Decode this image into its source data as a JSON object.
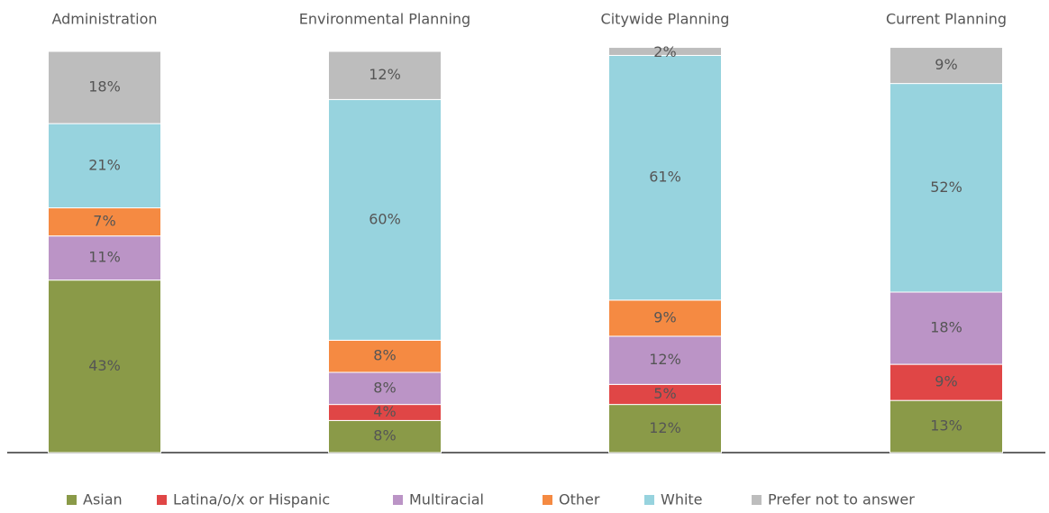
{
  "chart_data": {
    "type": "stacked_bar",
    "categories": [
      "Administration",
      "Environmental Planning",
      "Citywide Planning",
      "Current Planning"
    ],
    "series": [
      {
        "name": "Asian",
        "color": "#8a9a48",
        "values": [
          43,
          8,
          12,
          13
        ],
        "value_labels": [
          "43%",
          "8%",
          "12%",
          "13%"
        ]
      },
      {
        "name": "Latina/o/x or Hispanic",
        "color": "#e04646",
        "values": [
          null,
          4,
          5,
          9
        ],
        "value_labels": [
          null,
          "4%",
          "5%",
          "9%"
        ]
      },
      {
        "name": "Multiracial",
        "color": "#bb94c6",
        "values": [
          11,
          8,
          12,
          18
        ],
        "value_labels": [
          "11%",
          "8%",
          "12%",
          "18%"
        ]
      },
      {
        "name": "Other",
        "color": "#f58a42",
        "values": [
          7,
          8,
          9,
          null
        ],
        "value_labels": [
          "7%",
          "8%",
          "9%",
          null
        ]
      },
      {
        "name": "White",
        "color": "#97d3de",
        "values": [
          21,
          60,
          61,
          52
        ],
        "value_labels": [
          "21%",
          "60%",
          "61%",
          "52%"
        ]
      },
      {
        "name": "Prefer not to answer",
        "color": "#bdbdbd",
        "values": [
          18,
          12,
          2,
          9
        ],
        "value_labels": [
          "18%",
          "12%",
          "2%",
          "9%"
        ]
      }
    ],
    "legend": "bottom"
  }
}
